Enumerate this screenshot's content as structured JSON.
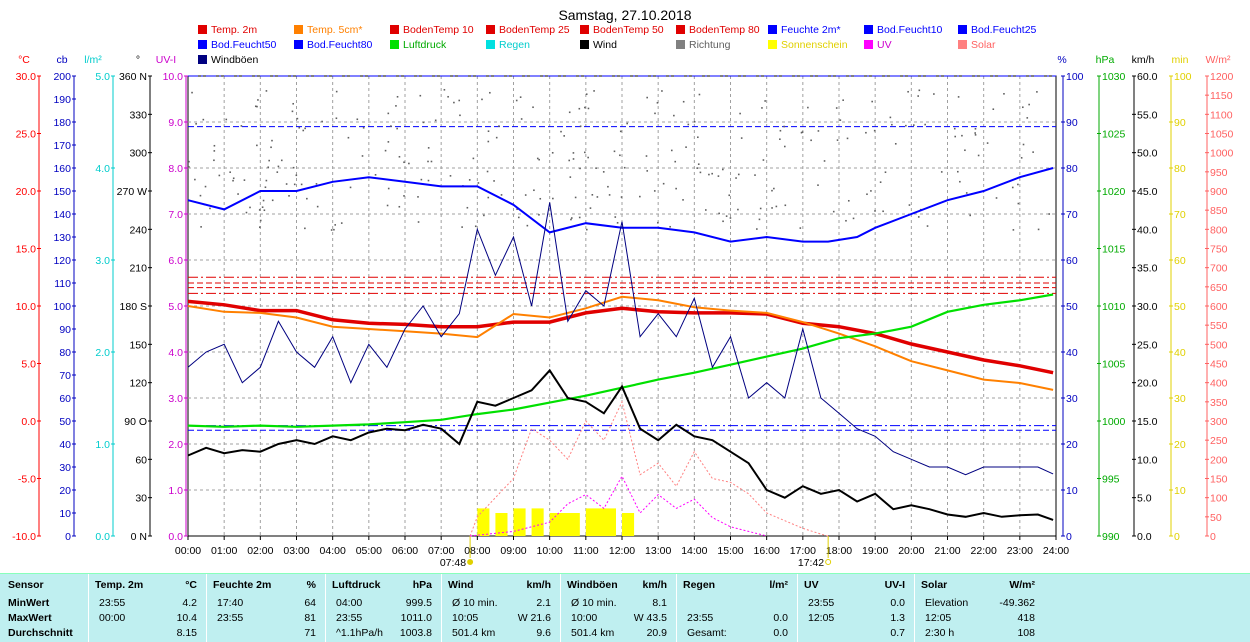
{
  "chart_data": {
    "type": "line",
    "title": "Samstag, 27.10.2018",
    "legend": [
      {
        "name": "Temp. 2m",
        "color": "#e00000"
      },
      {
        "name": "Temp. 5cm*",
        "color": "#ff8000"
      },
      {
        "name": "BodenTemp 10",
        "color": "#e00000"
      },
      {
        "name": "BodenTemp 25",
        "color": "#e00000"
      },
      {
        "name": "BodenTemp 50",
        "color": "#e00000"
      },
      {
        "name": "BodenTemp 80",
        "color": "#e00000"
      },
      {
        "name": "Feuchte 2m*",
        "color": "#0000ff"
      },
      {
        "name": "Bod.Feucht10",
        "color": "#0000ff"
      },
      {
        "name": "Bod.Feucht25",
        "color": "#0000ff"
      },
      {
        "name": "Bod.Feucht50",
        "color": "#0000ff"
      },
      {
        "name": "Bod.Feucht80",
        "color": "#0000ff"
      },
      {
        "name": "Luftdruck",
        "color": "#00e000"
      },
      {
        "name": "Regen",
        "color": "#00e0e0"
      },
      {
        "name": "Wind",
        "color": "#000000"
      },
      {
        "name": "Richtung",
        "color": "#808080"
      },
      {
        "name": "Sonnenschein",
        "color": "#ffff00"
      },
      {
        "name": "UV",
        "color": "#ff00ff"
      },
      {
        "name": "Solar",
        "color": "#ff8080"
      },
      {
        "name": "Windböen",
        "color": "#000080"
      }
    ],
    "x_ticks": [
      "00:00",
      "01:00",
      "02:00",
      "03:00",
      "04:00",
      "05:00",
      "06:00",
      "07:00",
      "08:00",
      "09:00",
      "10:00",
      "11:00",
      "12:00",
      "13:00",
      "14:00",
      "15:00",
      "16:00",
      "17:00",
      "18:00",
      "19:00",
      "20:00",
      "21:00",
      "22:00",
      "23:00",
      "24:00"
    ],
    "x_markers": [
      {
        "label": "07:48",
        "hour": 7.8
      },
      {
        "label": "17:42",
        "hour": 17.7
      }
    ],
    "axes": {
      "temp": {
        "unit": "°C",
        "color": "#ff0000",
        "range": [
          -10,
          30
        ],
        "ticks": [
          "30.0",
          "25.0",
          "20.0",
          "15.0",
          "10.0",
          "5.0",
          "0.0",
          "-5.0",
          "-10.0"
        ]
      },
      "cb": {
        "unit": "cb",
        "color": "#0000c0",
        "range": [
          0,
          200
        ],
        "ticks": [
          "200",
          "190",
          "180",
          "170",
          "160",
          "150",
          "140",
          "130",
          "120",
          "110",
          "100",
          "90",
          "80",
          "70",
          "60",
          "50",
          "40",
          "30",
          "20",
          "10",
          "0"
        ]
      },
      "rain": {
        "unit": "l/m²",
        "color": "#00cccc",
        "range": [
          0,
          5
        ],
        "ticks": [
          "5.0",
          "4.0",
          "3.0",
          "2.0",
          "1.0",
          "0.0"
        ]
      },
      "dir": {
        "unit": "°",
        "color": "#000000",
        "range": [
          0,
          360
        ],
        "ticks": [
          "360 N",
          "330",
          "300",
          "270 W",
          "240",
          "210",
          "180 S",
          "150",
          "120",
          "90 O",
          "60",
          "30",
          "0 N"
        ]
      },
      "uv": {
        "unit": "UV-I",
        "color": "#cc00cc",
        "range": [
          0,
          10
        ],
        "ticks": [
          "10.0",
          "9.0",
          "8.0",
          "7.0",
          "6.0",
          "5.0",
          "4.0",
          "3.0",
          "2.0",
          "1.0",
          "0.0"
        ]
      },
      "hum": {
        "unit": "%",
        "color": "#0000c0",
        "range": [
          0,
          100
        ],
        "ticks": [
          "100",
          "90",
          "80",
          "70",
          "60",
          "50",
          "40",
          "30",
          "20",
          "10",
          "0"
        ]
      },
      "press": {
        "unit": "hPa",
        "color": "#00aa00",
        "range": [
          990,
          1030
        ],
        "ticks": [
          "1030",
          "1025",
          "1020",
          "1015",
          "1010",
          "1005",
          "1000",
          "995",
          "990"
        ]
      },
      "wind": {
        "unit": "km/h",
        "color": "#000000",
        "range": [
          0,
          60
        ],
        "ticks": [
          "60.0",
          "55.0",
          "50.0",
          "45.0",
          "40.0",
          "35.0",
          "30.0",
          "25.0",
          "20.0",
          "15.0",
          "10.0",
          "5.0",
          "0.0"
        ]
      },
      "sun": {
        "unit": "min",
        "color": "#e0d000",
        "range": [
          0,
          100
        ],
        "ticks": [
          "100",
          "90",
          "80",
          "70",
          "60",
          "50",
          "40",
          "30",
          "20",
          "10",
          "0"
        ]
      },
      "solar": {
        "unit": "W/m²",
        "color": "#ff6060",
        "range": [
          0,
          1200
        ],
        "ticks": [
          "1200",
          "1150",
          "1100",
          "1050",
          "1000",
          "950",
          "900",
          "850",
          "800",
          "750",
          "700",
          "650",
          "600",
          "550",
          "500",
          "450",
          "400",
          "350",
          "300",
          "250",
          "200",
          "150",
          "100",
          "50",
          "0"
        ]
      }
    },
    "series": [
      {
        "name": "Temp. 2m",
        "axis": "temp",
        "color": "#e00000",
        "x": [
          0,
          1,
          2,
          3,
          4,
          5,
          6,
          7,
          8,
          9,
          10,
          11,
          12,
          13,
          14,
          15,
          16,
          17,
          18,
          19,
          20,
          21,
          22,
          23,
          23.92
        ],
        "y": [
          10.4,
          10.1,
          9.6,
          9.6,
          8.8,
          8.5,
          8.4,
          8.2,
          8.2,
          8.6,
          8.6,
          9.4,
          9.8,
          9.5,
          9.4,
          9.4,
          9.3,
          8.5,
          8.2,
          7.6,
          6.7,
          6.0,
          5.3,
          4.8,
          4.2
        ]
      },
      {
        "name": "Temp. 5cm*",
        "axis": "temp",
        "color": "#ff8000",
        "x": [
          0,
          1,
          2,
          3,
          4,
          5,
          6,
          7,
          8,
          9,
          10,
          11,
          12,
          13,
          14,
          15,
          16,
          17,
          18,
          19,
          20,
          21,
          22,
          23,
          23.92
        ],
        "y": [
          10.0,
          9.5,
          9.4,
          9.0,
          8.2,
          8.0,
          7.8,
          7.6,
          7.3,
          9.3,
          9.0,
          9.8,
          10.8,
          10.5,
          9.9,
          9.6,
          9.4,
          8.6,
          7.6,
          6.5,
          5.2,
          4.4,
          3.6,
          3.3,
          2.7
        ]
      },
      {
        "name": "Feuchte 2m*",
        "axis": "hum",
        "color": "#0000ff",
        "x": [
          0,
          1,
          2,
          3,
          4,
          5,
          6,
          7,
          8,
          9,
          10,
          11,
          12,
          13,
          14,
          15,
          16,
          17,
          17.7,
          18.5,
          19,
          20,
          21,
          22,
          23,
          23.92
        ],
        "y": [
          73,
          71,
          75,
          75,
          77,
          78,
          77,
          76,
          76,
          72,
          66,
          68,
          67,
          67,
          66,
          64,
          65,
          64,
          64,
          65,
          67,
          70,
          73,
          75,
          78,
          80
        ]
      },
      {
        "name": "Luftdruck",
        "axis": "press",
        "color": "#00e000",
        "x": [
          0,
          1,
          2,
          3,
          4,
          5,
          6,
          7,
          8,
          9,
          10,
          11,
          12,
          13,
          14,
          15,
          16,
          17,
          18,
          19,
          20,
          21,
          22,
          23,
          23.92
        ],
        "y": [
          999.6,
          999.5,
          999.6,
          999.5,
          999.6,
          999.7,
          999.9,
          1000.1,
          1000.6,
          1001.0,
          1001.6,
          1002.2,
          1002.9,
          1003.6,
          1004.2,
          1004.9,
          1005.6,
          1006.3,
          1007.2,
          1007.6,
          1008.2,
          1009.5,
          1010.1,
          1010.5,
          1011.0
        ]
      },
      {
        "name": "Wind",
        "axis": "wind",
        "color": "#000000",
        "x": [
          0,
          0.5,
          1,
          1.5,
          2,
          2.5,
          3,
          3.5,
          4,
          4.5,
          5,
          5.5,
          6,
          6.5,
          7,
          7.5,
          8,
          8.5,
          9,
          9.5,
          10,
          10.5,
          11,
          11.5,
          12,
          12.5,
          13,
          13.5,
          14,
          14.5,
          15,
          15.5,
          16,
          16.5,
          17,
          17.5,
          18,
          18.5,
          19,
          19.5,
          20,
          20.5,
          21,
          21.5,
          22,
          22.5,
          23,
          23.5,
          23.92
        ],
        "y": [
          10.5,
          11.5,
          10.8,
          11.2,
          11.0,
          12.0,
          12.5,
          12.0,
          13.0,
          12.5,
          13.5,
          14.0,
          13.8,
          14.5,
          14.0,
          12.0,
          17.5,
          17.0,
          18.0,
          19.0,
          21.6,
          18.0,
          17.5,
          16.0,
          19.5,
          14.0,
          12.5,
          14.5,
          13.0,
          12.5,
          11.0,
          9.5,
          6.0,
          5.0,
          6.5,
          5.5,
          6.0,
          4.5,
          5.5,
          3.5,
          4.0,
          3.5,
          2.8,
          2.5,
          3.0,
          2.5,
          2.7,
          2.8,
          2.1
        ]
      },
      {
        "name": "Windböen",
        "axis": "wind",
        "color": "#000080",
        "x": [
          0,
          0.5,
          1,
          1.5,
          2,
          2.5,
          3,
          3.5,
          4,
          4.5,
          5,
          5.5,
          6,
          6.5,
          7,
          7.5,
          8,
          8.5,
          9,
          9.5,
          10,
          10.5,
          11,
          11.5,
          12,
          12.5,
          13,
          13.5,
          14,
          14.5,
          15,
          15.5,
          16,
          16.5,
          17,
          17.5,
          18,
          18.5,
          19,
          19.5,
          20,
          20.5,
          21,
          21.5,
          22,
          22.5,
          23,
          23.5,
          23.92
        ],
        "y": [
          22,
          24,
          25,
          20,
          22,
          28,
          24,
          22,
          26,
          20,
          25,
          22,
          27,
          30,
          26,
          29,
          40,
          34,
          39,
          30,
          43.5,
          28,
          32,
          30,
          41,
          26,
          29,
          26,
          31,
          22,
          26,
          18,
          20,
          18,
          27,
          18,
          16,
          14,
          13,
          11,
          10,
          9,
          9,
          8,
          9,
          9,
          9,
          9,
          8.1
        ]
      },
      {
        "name": "Solar",
        "axis": "solar",
        "color": "#ff8080",
        "x": [
          7.8,
          8,
          9,
          9.5,
          10,
          10.5,
          11,
          11.5,
          12,
          12.5,
          13,
          13.5,
          14,
          14.5,
          15,
          15.5,
          16,
          16.5,
          17,
          17.5,
          17.7
        ],
        "y": [
          0,
          50,
          150,
          280,
          250,
          200,
          300,
          250,
          350,
          160,
          190,
          130,
          220,
          150,
          140,
          110,
          60,
          40,
          20,
          5,
          0
        ]
      },
      {
        "name": "UV",
        "axis": "uv",
        "color": "#ff00ff",
        "x": [
          7.8,
          9,
          10,
          10.5,
          11,
          11.5,
          12,
          12.5,
          13,
          13.5,
          14,
          14.5,
          15,
          15.5,
          16
        ],
        "y": [
          0,
          0.1,
          0.3,
          0.7,
          0.9,
          0.6,
          1.3,
          0.5,
          0.9,
          0.6,
          0.8,
          0.4,
          0.2,
          0.1,
          0
        ]
      },
      {
        "name": "Sonnenschein",
        "axis": "sun",
        "color": "#ffff00",
        "x": [
          8,
          8.5,
          9,
          9.5,
          10,
          11,
          12,
          12.5
        ],
        "y": [
          6,
          5,
          6,
          6,
          5,
          6,
          5,
          0
        ]
      }
    ],
    "reference_lines": [
      {
        "name": "BodenTemp 10",
        "axis": "temp",
        "value": 11.6,
        "color": "#e00000"
      },
      {
        "name": "BodenTemp 25",
        "axis": "temp",
        "value": 11.1,
        "color": "#e00000"
      },
      {
        "name": "BodenTemp 50",
        "axis": "temp",
        "value": 12.0,
        "color": "#e00000"
      },
      {
        "name": "BodenTemp 80",
        "axis": "temp",
        "value": 12.5,
        "color": "#e00000"
      },
      {
        "name": "Bod.Feucht10",
        "axis": "hum",
        "value": 89,
        "color": "#0000ff"
      },
      {
        "name": "Bod.Feucht25",
        "axis": "hum",
        "value": 100,
        "color": "#0000ff"
      },
      {
        "name": "Bod.Feucht50",
        "axis": "hum",
        "value": 23,
        "color": "#0000ff"
      },
      {
        "name": "Bod.Feucht80",
        "axis": "hum",
        "value": 24,
        "color": "#0000ff"
      }
    ],
    "grid": true,
    "legend_position": "top"
  },
  "stats": {
    "row_labels": [
      "Sensor",
      "MinWert",
      "MaxWert",
      "Durchschnitt"
    ],
    "groups": [
      {
        "name": "Temp. 2m",
        "unit": "°C",
        "rows": [
          [
            "23:55",
            "4.2"
          ],
          [
            "00:00",
            "10.4"
          ],
          [
            "",
            "8.15"
          ]
        ]
      },
      {
        "name": "Feuchte 2m",
        "unit": "%",
        "rows": [
          [
            "17:40",
            "64"
          ],
          [
            "23:55",
            "81"
          ],
          [
            "",
            "71"
          ]
        ]
      },
      {
        "name": "Luftdruck",
        "unit": "hPa",
        "rows": [
          [
            "04:00",
            "999.5"
          ],
          [
            "23:55",
            "1011.0"
          ],
          [
            "^1.1hPa/h",
            "1003.8"
          ]
        ]
      },
      {
        "name": "Wind",
        "unit": "km/h",
        "rows": [
          [
            "Ø 10 min.",
            "2.1"
          ],
          [
            "10:05",
            "W 21.6"
          ],
          [
            "501.4 km",
            "9.6"
          ]
        ]
      },
      {
        "name": "Windböen",
        "unit": "km/h",
        "rows": [
          [
            "Ø 10 min.",
            "8.1"
          ],
          [
            "10:00",
            "W 43.5"
          ],
          [
            "501.4 km",
            "20.9"
          ]
        ]
      },
      {
        "name": "Regen",
        "unit": "l/m²",
        "rows": [
          [
            "",
            ""
          ],
          [
            "23:55",
            "0.0"
          ],
          [
            "Gesamt:",
            "0.0"
          ]
        ]
      },
      {
        "name": "UV",
        "unit": "UV-I",
        "rows": [
          [
            "23:55",
            "0.0"
          ],
          [
            "12:05",
            "1.3"
          ],
          [
            "",
            "0.7"
          ]
        ]
      },
      {
        "name": "Solar",
        "unit": "W/m²",
        "rows": [
          [
            "Elevation",
            "-49.362"
          ],
          [
            "12:05",
            "418"
          ],
          [
            "2:30 h",
            "108"
          ]
        ]
      }
    ]
  }
}
